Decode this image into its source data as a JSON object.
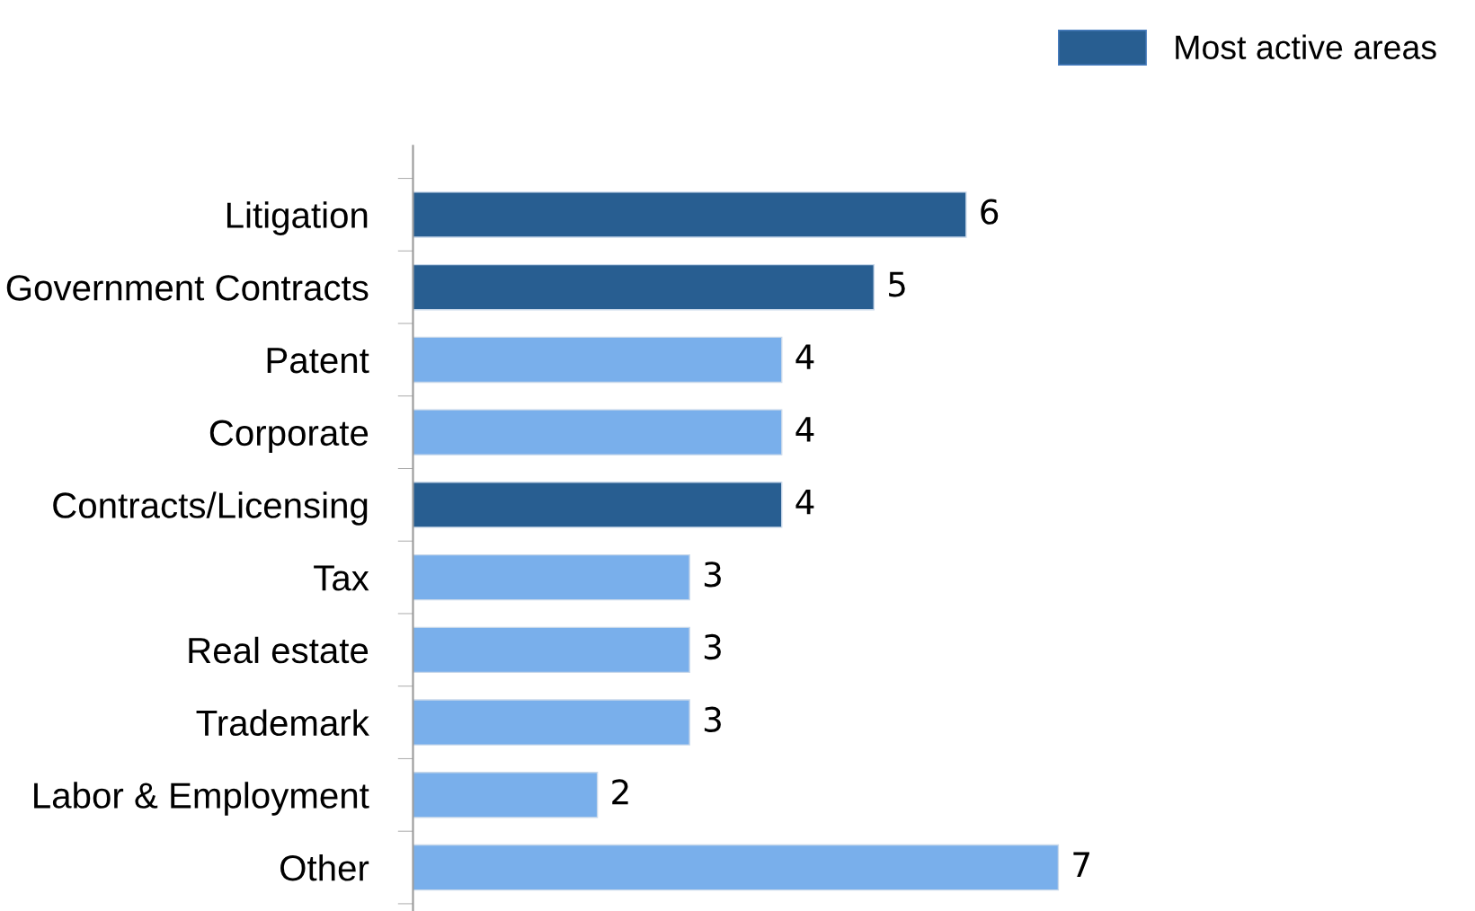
{
  "chart_data": {
    "type": "bar",
    "orientation": "horizontal",
    "categories": [
      "Litigation",
      "Government Contracts",
      "Patent",
      "Corporate",
      "Contracts/Licensing",
      "Tax",
      "Real estate",
      "Trademark",
      "Labor & Employment",
      "Other"
    ],
    "series": [
      {
        "name": "Most active areas",
        "color": "#285e91",
        "values": [
          6,
          5,
          null,
          null,
          4,
          null,
          null,
          null,
          null,
          null
        ]
      },
      {
        "color": "#79afeb",
        "values": [
          null,
          null,
          4,
          4,
          null,
          3,
          3,
          3,
          2,
          7
        ]
      }
    ],
    "data_labels": true,
    "legend": "top right",
    "grid": false,
    "tick_labels": "y"
  }
}
